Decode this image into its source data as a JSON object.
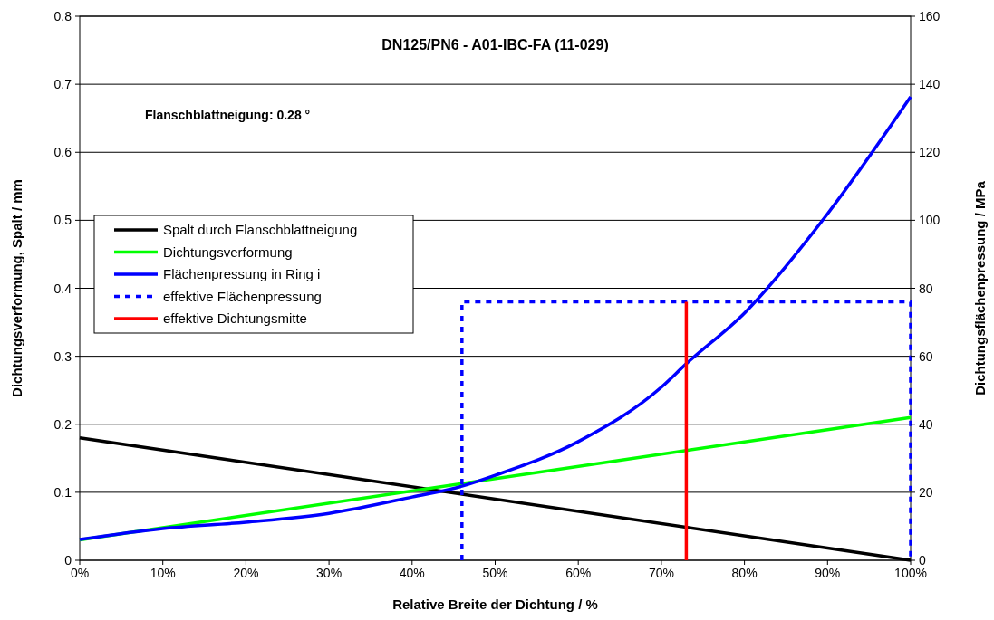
{
  "chart_data": {
    "type": "line",
    "title": "DN125/PN6 - A01-IBC-FA (11-029)",
    "xlabel": "Relative Breite der Dichtung / %",
    "ylabel": "Dichtungsverformung, Spalt / mm",
    "y2label": "Dichtungsflächenpressung / MPa",
    "annotations": [
      "Flanschblattneigung: 0.28 °"
    ],
    "xlim": [
      0,
      100
    ],
    "xticks": [
      {
        "value": 0,
        "label": "0%"
      },
      {
        "value": 10,
        "label": "10%"
      },
      {
        "value": 20,
        "label": "20%"
      },
      {
        "value": 30,
        "label": "30%"
      },
      {
        "value": 40,
        "label": "40%"
      },
      {
        "value": 50,
        "label": "50%"
      },
      {
        "value": 60,
        "label": "60%"
      },
      {
        "value": 70,
        "label": "70%"
      },
      {
        "value": 80,
        "label": "80%"
      },
      {
        "value": 90,
        "label": "90%"
      },
      {
        "value": 100,
        "label": "100%"
      }
    ],
    "ylim": [
      0,
      0.8
    ],
    "yticks": [
      0,
      0.1,
      0.2,
      0.3,
      0.4,
      0.5,
      0.6,
      0.7,
      0.8
    ],
    "y2lim": [
      0,
      160
    ],
    "y2ticks": [
      0,
      20,
      40,
      60,
      80,
      100,
      120,
      140,
      160
    ],
    "grid": "y",
    "legend": "left",
    "series": [
      {
        "name": "Spalt durch Flanschblattneigung",
        "color": "#000000",
        "x": [
          0,
          100
        ],
        "values": [
          0.18,
          0
        ]
      },
      {
        "name": "Dichtungsverformung",
        "color": "#00ff00",
        "x": [
          0,
          100
        ],
        "values": [
          0.03,
          0.21
        ]
      },
      {
        "name": "Flächenpressung in Ring i",
        "color": "#0000ff",
        "axis": "y2",
        "x": [
          0,
          10,
          20,
          30,
          40,
          46,
          50,
          60,
          70,
          73,
          80,
          90,
          100
        ],
        "values": [
          6.1,
          9.3,
          11.2,
          13.8,
          18.6,
          21.8,
          25,
          34.9,
          50.9,
          57.8,
          72.7,
          101.9,
          136.3
        ]
      },
      {
        "name": "effektive Flächenpressung",
        "color": "#0000ff",
        "axis": "y2",
        "line_style": "dashed",
        "x": [
          46,
          46,
          100,
          100
        ],
        "values": [
          0,
          76,
          76,
          0
        ]
      },
      {
        "name": "effektive Dichtungsmitte",
        "color": "#ff0000",
        "axis": "y2",
        "x": [
          73,
          73
        ],
        "values": [
          0,
          76
        ]
      }
    ]
  }
}
